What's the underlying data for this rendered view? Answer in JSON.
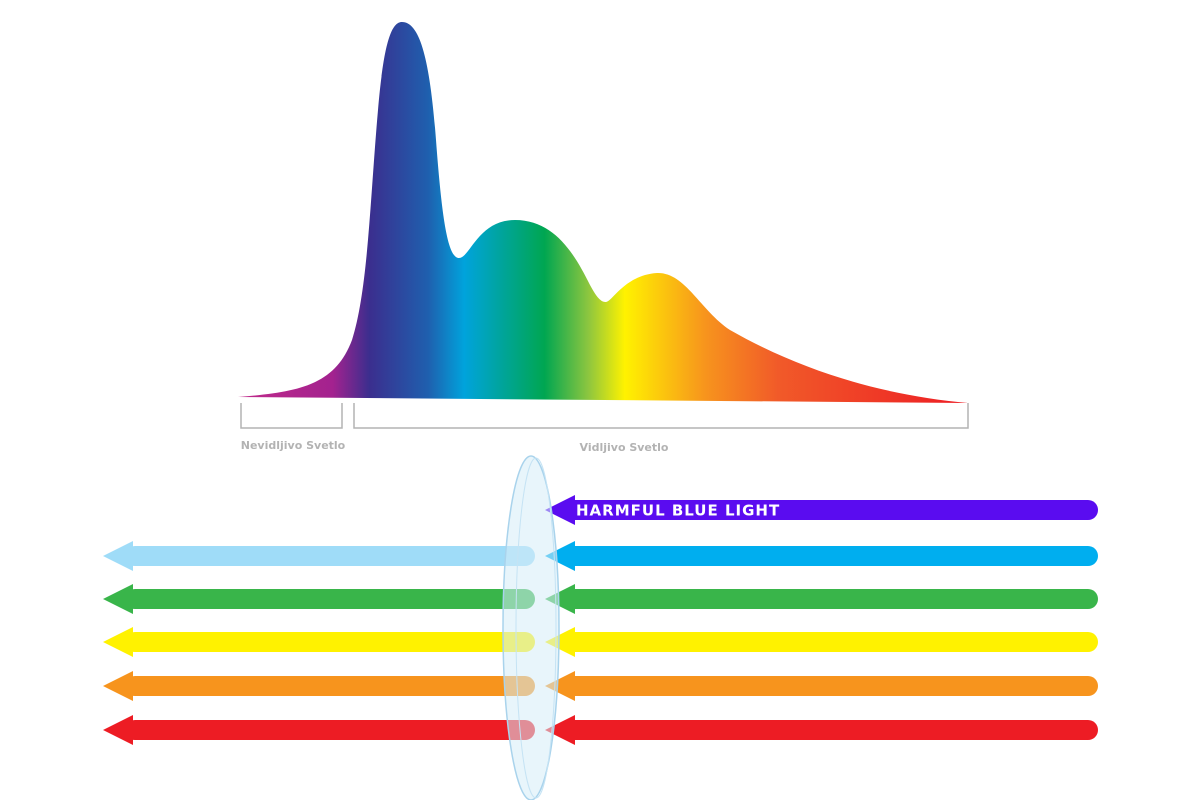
{
  "spectrum": {
    "labels": [
      "Nevidljivo Svetlo",
      "Vidljivo Svetlo"
    ]
  },
  "arrows": {
    "label": "HARMFUL BLUE LIGHT"
  }
}
